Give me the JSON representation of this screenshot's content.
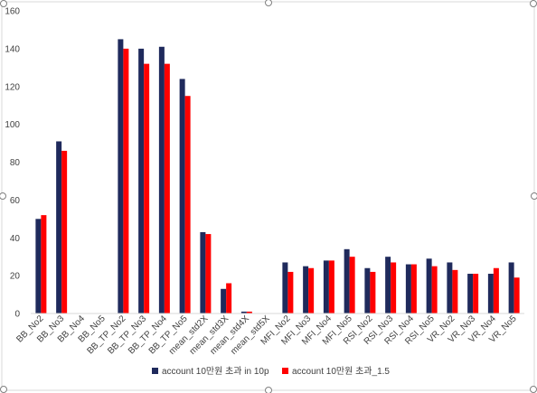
{
  "chart_data": {
    "type": "bar",
    "title": "",
    "xlabel": "",
    "ylabel": "",
    "ylim": [
      0,
      160
    ],
    "yticks": [
      0,
      20,
      40,
      60,
      80,
      100,
      120,
      140,
      160
    ],
    "grid": false,
    "legend_position": "bottom",
    "categories": [
      "BB_No2",
      "BB_No3",
      "BB_No4",
      "BB_No5",
      "BB_TP_No2",
      "BB_TP_No3",
      "BB_TP_No4",
      "BB_TP_No5",
      "mean_std2X",
      "mean_std3X",
      "mean_std4X",
      "mean_std5X",
      "MFI_No2",
      "MFI_No3",
      "MFI_No4",
      "MFI_No5",
      "RSI_No2",
      "RSI_No3",
      "RSI_No4",
      "RSI_No5",
      "VR_No2",
      "VR_No3",
      "VR_No4",
      "VR_No5"
    ],
    "series": [
      {
        "name": "account 10만원 초과 in 10p",
        "color": "#1f2a5c",
        "values": [
          50,
          91,
          0,
          0,
          145,
          140,
          141,
          124,
          43,
          13,
          1,
          0,
          27,
          25,
          28,
          34,
          24,
          30,
          26,
          29,
          27,
          21,
          21,
          27
        ]
      },
      {
        "name": "account 10만원 초과_1.5",
        "color": "#ff0000",
        "values": [
          52,
          86,
          0,
          0,
          140,
          132,
          132,
          115,
          42,
          16,
          1,
          0,
          22,
          24,
          28,
          30,
          22,
          27,
          26,
          25,
          23,
          21,
          24,
          19
        ]
      }
    ]
  }
}
